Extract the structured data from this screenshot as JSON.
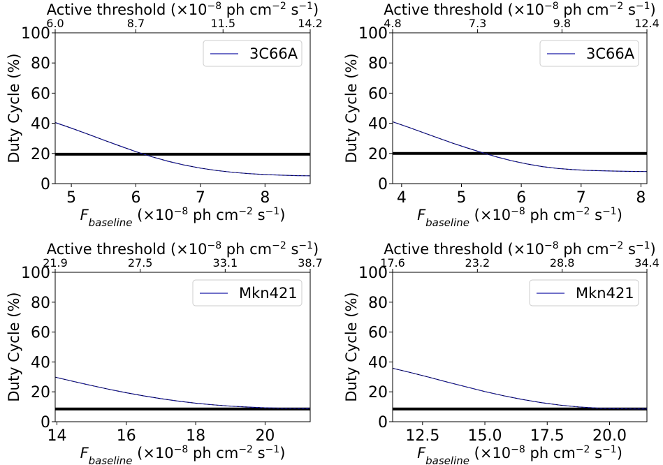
{
  "chart_data": [
    {
      "type": "line",
      "xlabel_prefix": "F",
      "xlabel_sub": "baseline",
      "xlabel_units": " (×10",
      "xlabel_exp": "−8",
      "xlabel_rest": " ph cm",
      "xlabel_exp2": "−2",
      "xlabel_s": " s",
      "xlabel_exp3": "−1",
      "xlabel_end": ")",
      "ylabel": "Duty Cycle (%)",
      "top_title": "Active threshold (×10",
      "top_title_exp": "−8",
      "top_title_mid": " ph cm",
      "top_title_exp2": "−2",
      "top_title_s": " s",
      "top_title_exp3": "−1",
      "top_title_end": ")",
      "xlim": [
        4.75,
        8.7
      ],
      "ylim": [
        0,
        100
      ],
      "x_ticks": [
        5,
        6,
        7,
        8
      ],
      "x_tick_labels": [
        "5",
        "6",
        "7",
        "8"
      ],
      "y_ticks": [
        0,
        20,
        40,
        60,
        80,
        100
      ],
      "y_tick_labels": [
        "0",
        "20",
        "40",
        "60",
        "80",
        "100"
      ],
      "top_ticks": [
        4.75,
        6.0,
        7.35,
        8.7
      ],
      "top_tick_labels": [
        "6.0",
        "8.7",
        "11.5",
        "14.2"
      ],
      "legend": "3C66A",
      "legend_position": "top-right",
      "threshold": 19.5,
      "series": [
        {
          "name": "3C66A",
          "color": "#1a1aa6",
          "x": [
            4.75,
            5.0,
            5.25,
            5.5,
            5.75,
            6.0,
            6.25,
            6.5,
            6.75,
            7.0,
            7.25,
            7.5,
            7.75,
            8.0,
            8.25,
            8.5,
            8.7
          ],
          "y": [
            40.5,
            36.8,
            32.9,
            28.9,
            25.0,
            21.2,
            17.8,
            14.8,
            12.3,
            10.3,
            8.7,
            7.5,
            6.6,
            6.0,
            5.6,
            5.3,
            5.2
          ]
        }
      ]
    },
    {
      "type": "line",
      "xlabel_prefix": "F",
      "xlabel_sub": "baseline",
      "xlabel_units": " (×10",
      "xlabel_exp": "−8",
      "xlabel_rest": " ph cm",
      "xlabel_exp2": "−2",
      "xlabel_s": " s",
      "xlabel_exp3": "−1",
      "xlabel_end": ")",
      "ylabel": "Duty Cycle (%)",
      "top_title": "Active threshold (×10",
      "top_title_exp": "−8",
      "top_title_mid": " ph cm",
      "top_title_exp2": "−2",
      "top_title_s": " s",
      "top_title_exp3": "−1",
      "top_title_end": ")",
      "xlim": [
        3.85,
        8.1
      ],
      "ylim": [
        0,
        100
      ],
      "x_ticks": [
        4,
        5,
        6,
        7,
        8
      ],
      "x_tick_labels": [
        "4",
        "5",
        "6",
        "7",
        "8"
      ],
      "y_ticks": [
        0,
        20,
        40,
        60,
        80,
        100
      ],
      "y_tick_labels": [
        "0",
        "20",
        "40",
        "60",
        "80",
        "100"
      ],
      "top_ticks": [
        3.85,
        5.27,
        6.68,
        8.1
      ],
      "top_tick_labels": [
        "4.8",
        "7.3",
        "9.8",
        "12.4"
      ],
      "legend": "3C66A",
      "legend_position": "top-right",
      "threshold": 20.0,
      "series": [
        {
          "name": "3C66A",
          "color": "#1a1aa6",
          "x": [
            3.85,
            4.1,
            4.35,
            4.6,
            4.85,
            5.1,
            5.35,
            5.6,
            5.85,
            6.1,
            6.35,
            6.6,
            6.85,
            7.1,
            7.35,
            7.6,
            7.85,
            8.1
          ],
          "y": [
            41.0,
            37.6,
            34.0,
            30.4,
            26.9,
            23.6,
            20.5,
            17.6,
            15.1,
            13.0,
            11.3,
            10.1,
            9.3,
            8.8,
            8.5,
            8.3,
            8.1,
            8.0
          ]
        }
      ]
    },
    {
      "type": "line",
      "xlabel_prefix": "F",
      "xlabel_sub": "baseline",
      "xlabel_units": " (×10",
      "xlabel_exp": "−8",
      "xlabel_rest": " ph cm",
      "xlabel_exp2": "−2",
      "xlabel_s": " s",
      "xlabel_exp3": "−1",
      "xlabel_end": ")",
      "ylabel": "Duty Cycle (%)",
      "top_title": "Active threshold (×10",
      "top_title_exp": "−8",
      "top_title_mid": " ph cm",
      "top_title_exp2": "−2",
      "top_title_s": " s",
      "top_title_exp3": "−1",
      "top_title_end": ")",
      "xlim": [
        13.95,
        21.3
      ],
      "ylim": [
        0,
        100
      ],
      "x_ticks": [
        14,
        16,
        18,
        20
      ],
      "x_tick_labels": [
        "14",
        "16",
        "18",
        "20"
      ],
      "y_ticks": [
        0,
        20,
        40,
        60,
        80,
        100
      ],
      "y_tick_labels": [
        "0",
        "20",
        "40",
        "60",
        "80",
        "100"
      ],
      "top_ticks": [
        13.95,
        16.4,
        18.85,
        21.3
      ],
      "top_tick_labels": [
        "21.9",
        "27.5",
        "33.1",
        "38.7"
      ],
      "legend": "Mkn421",
      "legend_position": "top-right",
      "threshold": 8.5,
      "series": [
        {
          "name": "Mkn421",
          "color": "#1a1aa6",
          "x": [
            13.95,
            14.5,
            15.0,
            15.5,
            16.0,
            16.5,
            17.0,
            17.5,
            18.0,
            18.5,
            19.0,
            19.5,
            20.0,
            20.5,
            21.0,
            21.3
          ],
          "y": [
            29.8,
            26.8,
            24.2,
            21.7,
            19.4,
            17.3,
            15.4,
            13.8,
            12.4,
            11.3,
            10.4,
            9.8,
            9.3,
            9.0,
            8.8,
            8.7
          ]
        }
      ]
    },
    {
      "type": "line",
      "xlabel_prefix": "F",
      "xlabel_sub": "baseline",
      "xlabel_units": " (×10",
      "xlabel_exp": "−8",
      "xlabel_rest": " ph cm",
      "xlabel_exp2": "−2",
      "xlabel_s": " s",
      "xlabel_exp3": "−1",
      "xlabel_end": ")",
      "ylabel": "Duty Cycle (%)",
      "top_title": "Active threshold (×10",
      "top_title_exp": "−8",
      "top_title_mid": " ph cm",
      "top_title_exp2": "−2",
      "top_title_s": " s",
      "top_title_exp3": "−1",
      "top_title_end": ")",
      "xlim": [
        11.3,
        21.5
      ],
      "ylim": [
        0,
        100
      ],
      "x_ticks": [
        12.5,
        15.0,
        17.5,
        20.0
      ],
      "x_tick_labels": [
        "12.5",
        "15.0",
        "17.5",
        "20.0"
      ],
      "y_ticks": [
        0,
        20,
        40,
        60,
        80,
        100
      ],
      "y_tick_labels": [
        "0",
        "20",
        "40",
        "60",
        "80",
        "100"
      ],
      "top_ticks": [
        11.3,
        14.7,
        18.1,
        21.5
      ],
      "top_tick_labels": [
        "17.6",
        "23.2",
        "28.8",
        "34.4"
      ],
      "legend": "Mkn421",
      "legend_position": "top-right",
      "threshold": 8.5,
      "series": [
        {
          "name": "Mkn421",
          "color": "#1a1aa6",
          "x": [
            11.3,
            12.0,
            12.75,
            13.5,
            14.25,
            15.0,
            15.75,
            16.5,
            17.25,
            18.0,
            18.75,
            19.5,
            20.25,
            21.0,
            21.5
          ],
          "y": [
            35.8,
            33.0,
            29.8,
            26.5,
            23.3,
            20.2,
            17.4,
            14.9,
            12.8,
            11.1,
            9.9,
            9.1,
            8.7,
            8.6,
            8.6
          ]
        }
      ]
    }
  ]
}
